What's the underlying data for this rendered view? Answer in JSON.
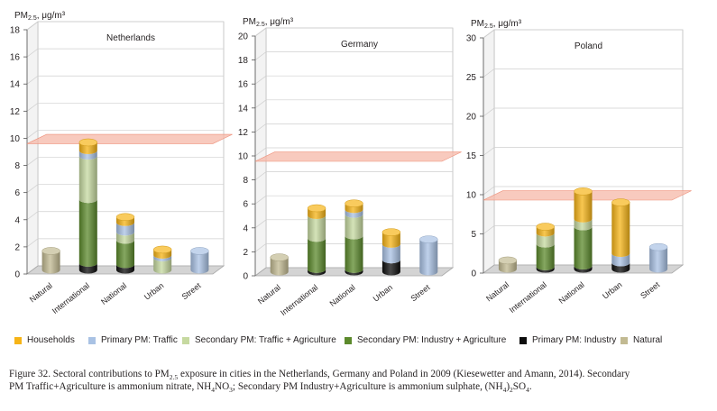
{
  "colors": {
    "Households": "#f6b417",
    "Primary PM: Traffic": "#a9c2e4",
    "Secondary PM: Traffic + Agriculture": "#c6d9a0",
    "Secondary PM: Industry + Agriculture": "#5c8a2c",
    "Primary PM: Industry": "#0d0d0d",
    "Natural": "#c2ba92",
    "limit_band": "#f6b8a8"
  },
  "legend": [
    {
      "label": "Households",
      "color": "#f6b417"
    },
    {
      "label": "Primary PM: Traffic",
      "color": "#a9c2e4"
    },
    {
      "label": "Secondary PM: Traffic + Agriculture",
      "color": "#c6d9a0"
    },
    {
      "label": "Secondary PM: Industry + Agriculture",
      "color": "#5c8a2c"
    },
    {
      "label": "Primary PM: Industry",
      "color": "#0d0d0d"
    },
    {
      "label": "Natural",
      "color": "#c2ba92"
    }
  ],
  "caption": {
    "figure": "Figure 32.",
    "l1a": " Sectoral contributions to PM",
    "l1sub": "2.5",
    "l1b": " exposure in cities in the Netherlands, Germany and Poland in 2009 (Kiesewetter and Amann, 2014). Secondary",
    "l2a": "PM Traffic+Agriculture is ammonium nitrate, NH",
    "l2sub1": "4",
    "l2b": "NO",
    "l2sub2": "3",
    "l2c": "; Secondary PM Industry+Agriculture is ammonium sulphate, (NH",
    "l2sub3": "4",
    "l2d": ")",
    "l2sub4": "2",
    "l2e": "SO",
    "l2sub5": "4",
    "l2f": "."
  },
  "chart_data": [
    {
      "type": "bar",
      "title": "Netherlands",
      "ylabel_main": "PM",
      "ylabel_sub": "2.5",
      "ylabel_unit": ", μg/m³",
      "ylim": [
        0,
        18
      ],
      "yticks": [
        "0",
        "2",
        "4",
        "6",
        "8",
        "10",
        "12",
        "14",
        "16",
        "18"
      ],
      "categories": [
        "Natural",
        "International",
        "National",
        "Urban",
        "Street"
      ],
      "limit_value": 10,
      "series": [
        {
          "name": "Natural",
          "values": [
            1.4,
            0,
            0,
            0,
            0
          ]
        },
        {
          "name": "Primary PM: Industry",
          "values": [
            0,
            0.5,
            0.4,
            0,
            0
          ]
        },
        {
          "name": "Secondary PM: Industry + Agriculture",
          "values": [
            0,
            4.7,
            1.8,
            0,
            0
          ]
        },
        {
          "name": "Secondary PM: Traffic + Agriculture",
          "values": [
            0,
            3.2,
            0.6,
            0.9,
            0
          ]
        },
        {
          "name": "Primary PM: Traffic",
          "values": [
            0,
            0.4,
            0.7,
            0.2,
            1.4
          ]
        },
        {
          "name": "Households",
          "values": [
            0,
            0.6,
            0.4,
            0.4,
            0
          ]
        }
      ]
    },
    {
      "type": "bar",
      "title": "Germany",
      "ylabel_main": "PM",
      "ylabel_sub": "2.5",
      "ylabel_unit": ", μg/m³",
      "ylim": [
        0,
        20
      ],
      "yticks": [
        "0",
        "2",
        "4",
        "6",
        "8",
        "10",
        "12",
        "14",
        "16",
        "18",
        "20"
      ],
      "categories": [
        "Natural",
        "International",
        "National",
        "Urban",
        "Street"
      ],
      "limit_value": 10,
      "series": [
        {
          "name": "Natural",
          "values": [
            1.2,
            0,
            0,
            0,
            0
          ]
        },
        {
          "name": "Primary PM: Industry",
          "values": [
            0,
            0.2,
            0.2,
            1.0,
            0
          ]
        },
        {
          "name": "Secondary PM: Industry + Agriculture",
          "values": [
            0,
            2.6,
            2.8,
            0,
            0
          ]
        },
        {
          "name": "Secondary PM: Traffic + Agriculture",
          "values": [
            0,
            1.9,
            1.8,
            0,
            0
          ]
        },
        {
          "name": "Primary PM: Traffic",
          "values": [
            0,
            0,
            0.4,
            1.3,
            2.7
          ]
        },
        {
          "name": "Households",
          "values": [
            0,
            0.6,
            0.5,
            1.0,
            0
          ]
        }
      ]
    },
    {
      "type": "bar",
      "title": "Poland",
      "ylabel_main": "PM",
      "ylabel_sub": "2.5",
      "ylabel_unit": ", μg/m³",
      "ylim": [
        0,
        30
      ],
      "yticks": [
        "0",
        "5",
        "10",
        "15",
        "20",
        "25",
        "30"
      ],
      "categories": [
        "Natural",
        "International",
        "National",
        "Urban",
        "Street"
      ],
      "limit_value": 10,
      "series": [
        {
          "name": "Natural",
          "values": [
            1.1,
            0,
            0,
            0,
            0
          ]
        },
        {
          "name": "Primary PM: Industry",
          "values": [
            0,
            0.3,
            0.4,
            0.8,
            0
          ]
        },
        {
          "name": "Secondary PM: Industry + Agriculture",
          "values": [
            0,
            2.9,
            5.0,
            0,
            0
          ]
        },
        {
          "name": "Secondary PM: Traffic + Agriculture",
          "values": [
            0,
            1.4,
            1.0,
            0,
            0
          ]
        },
        {
          "name": "Primary PM: Traffic",
          "values": [
            0,
            0,
            0,
            1.2,
            2.8
          ]
        },
        {
          "name": "Households",
          "values": [
            0,
            0.8,
            3.5,
            6.5,
            0
          ]
        }
      ]
    }
  ]
}
